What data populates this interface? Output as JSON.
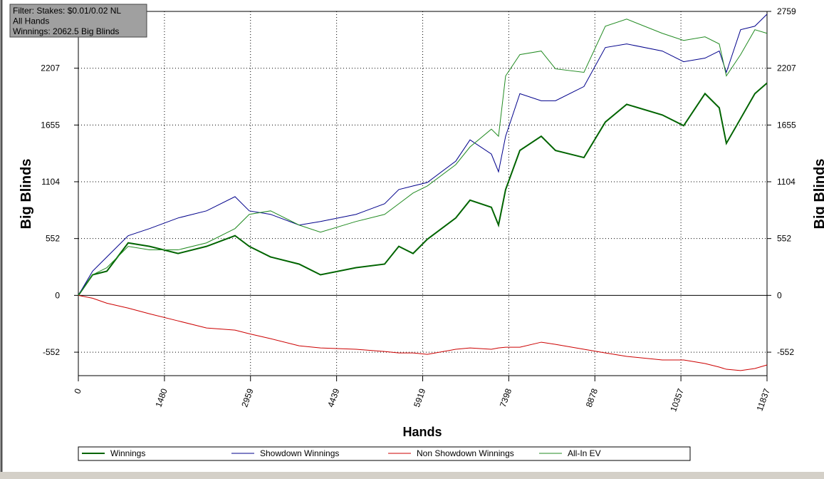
{
  "chart_data": {
    "type": "line",
    "annotations": [
      "Filter: Stakes: $0.01/0.02 NL",
      "All Hands",
      "Winnings: 2062.5 Big Blinds"
    ],
    "xlabel": "Hands",
    "ylabel": "Big Blinds",
    "xlim": [
      0,
      11837
    ],
    "xticks": [
      0,
      1480,
      2959,
      4439,
      5919,
      7398,
      8878,
      10357,
      11837
    ],
    "ylim": [
      -780,
      2759
    ],
    "yticks": [
      -552,
      0,
      552,
      1104,
      1655,
      2207,
      2759
    ],
    "grid": true,
    "legend": "bottom",
    "x": [
      0,
      245,
      490,
      857,
      1224,
      1714,
      2203,
      2693,
      2938,
      3305,
      3794,
      4162,
      4774,
      5264,
      5508,
      5753,
      5998,
      6487,
      6732,
      7099,
      7222,
      7344,
      7589,
      7956,
      8201,
      8690,
      9058,
      9425,
      10037,
      10404,
      10771,
      11016,
      11138,
      11383,
      11628,
      11837
    ],
    "series": [
      {
        "name": "Winnings",
        "color": "#006400",
        "width": 2,
        "values": [
          0,
          200,
          235,
          510,
          476,
          407,
          476,
          580,
          476,
          373,
          304,
          200,
          269,
          304,
          476,
          407,
          545,
          752,
          925,
          856,
          683,
          1028,
          1408,
          1546,
          1408,
          1339,
          1684,
          1856,
          1753,
          1649,
          1960,
          1822,
          1477,
          1718,
          1960,
          2063
        ]
      },
      {
        "name": "Showdown Winnings",
        "color": "#00008b",
        "width": 1,
        "values": [
          0,
          235,
          373,
          580,
          649,
          752,
          821,
          959,
          821,
          787,
          683,
          718,
          787,
          890,
          1028,
          1063,
          1097,
          1304,
          1511,
          1373,
          1201,
          1546,
          1960,
          1891,
          1891,
          2029,
          2408,
          2443,
          2374,
          2270,
          2305,
          2374,
          2167,
          2581,
          2615,
          2732
        ]
      },
      {
        "name": "Non Showdown Winnings",
        "color": "#cc0000",
        "width": 1,
        "values": [
          0,
          -28,
          -76,
          -124,
          -179,
          -248,
          -317,
          -338,
          -373,
          -421,
          -490,
          -511,
          -524,
          -545,
          -559,
          -559,
          -573,
          -524,
          -511,
          -524,
          -511,
          -504,
          -504,
          -455,
          -476,
          -524,
          -559,
          -593,
          -628,
          -628,
          -662,
          -697,
          -718,
          -731,
          -711,
          -676
        ]
      },
      {
        "name": "All-In EV",
        "color": "#228b22",
        "width": 1,
        "values": [
          0,
          200,
          269,
          476,
          442,
          442,
          510,
          649,
          787,
          821,
          683,
          614,
          718,
          787,
          890,
          994,
          1063,
          1270,
          1442,
          1615,
          1546,
          2132,
          2339,
          2374,
          2201,
          2167,
          2615,
          2684,
          2546,
          2477,
          2512,
          2443,
          2132,
          2339,
          2581,
          2546
        ]
      }
    ]
  }
}
